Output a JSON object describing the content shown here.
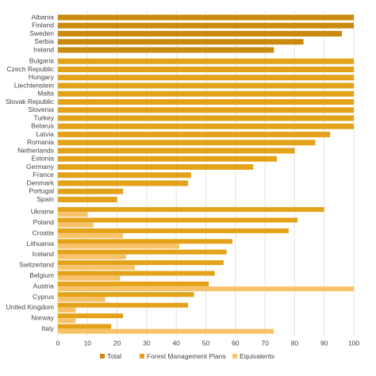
{
  "chart_data": {
    "type": "bar",
    "orientation": "horizontal",
    "categories": [
      "Albania",
      "Finland",
      "Sweden",
      "Serbia",
      "Ireland",
      "Bulgaria",
      "Czech Republic",
      "Hungary",
      "Liechtenstein",
      "Malta",
      "Slovak Republic",
      "Slovenia",
      "Turkey",
      "Belarus",
      "Latvia",
      "Romania",
      "Netherlands",
      "Estonia",
      "Germany",
      "France",
      "Denmark",
      "Portugal",
      "Spain",
      "Ukraine",
      "Poland",
      "Croatia",
      "Lithuania",
      "Iceland",
      "Switzerland",
      "Belgium",
      "Austria",
      "Cyprus",
      "United Kingdom",
      "Norway",
      "Italy"
    ],
    "series": [
      {
        "name": "Total",
        "color": "#c98a0e",
        "values": [
          100,
          100,
          96,
          83,
          73,
          null,
          null,
          null,
          null,
          null,
          null,
          null,
          null,
          null,
          null,
          null,
          null,
          null,
          null,
          null,
          null,
          null,
          null,
          null,
          null,
          null,
          null,
          null,
          null,
          null,
          null,
          null,
          null,
          null,
          null
        ]
      },
      {
        "name": "Forest Management Plans",
        "color": "#e3a21a",
        "values": [
          null,
          null,
          null,
          null,
          null,
          100,
          100,
          100,
          100,
          100,
          100,
          100,
          100,
          100,
          92,
          87,
          80,
          74,
          66,
          45,
          44,
          22,
          20,
          90,
          81,
          78,
          59,
          57,
          56,
          53,
          51,
          46,
          44,
          22,
          18
        ]
      },
      {
        "name": "Equivalents",
        "color": "#f7c36a",
        "values": [
          null,
          null,
          null,
          null,
          null,
          null,
          null,
          null,
          null,
          null,
          null,
          null,
          null,
          null,
          null,
          null,
          null,
          null,
          null,
          null,
          null,
          null,
          null,
          10,
          12,
          22,
          41,
          23,
          26,
          21,
          100,
          16,
          6,
          6,
          73
        ]
      }
    ],
    "xlim": [
      0,
      100
    ],
    "xticks": [
      0,
      10,
      20,
      30,
      40,
      50,
      60,
      70,
      80,
      90,
      100
    ],
    "grid": true,
    "legend": "bottom"
  }
}
